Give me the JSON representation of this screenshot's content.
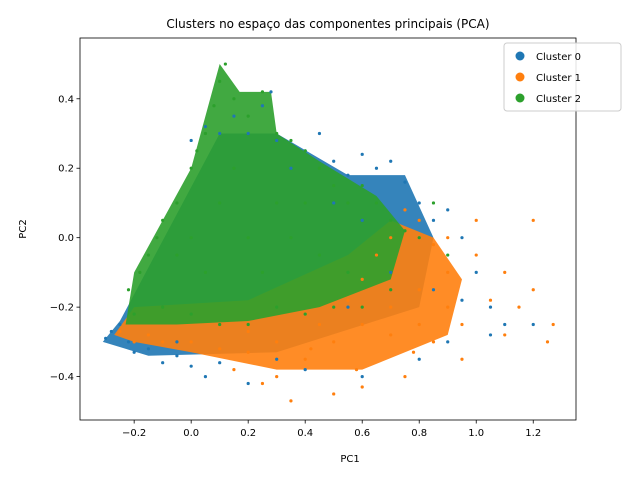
{
  "chart_data": {
    "type": "scatter",
    "title": "Clusters no espaço das componentes principais (PCA)",
    "xlabel": "PC1",
    "ylabel": "PC2",
    "xlim": [
      -0.39,
      1.35
    ],
    "ylim": [
      -0.525,
      0.575
    ],
    "xticks": [
      -0.2,
      0.0,
      0.2,
      0.4,
      0.6,
      0.8,
      1.0,
      1.2
    ],
    "xtick_labels": [
      "−0.2",
      "0.0",
      "0.2",
      "0.4",
      "0.6",
      "0.8",
      "1.0",
      "1.2"
    ],
    "yticks": [
      -0.4,
      -0.2,
      0.0,
      0.2,
      0.4
    ],
    "ytick_labels": [
      "−0.4",
      "−0.2",
      "0.0",
      "0.2",
      "0.4"
    ],
    "grid": false,
    "legend_position": "top-right",
    "series": [
      {
        "name": "Cluster 0",
        "color": "#1f77b4",
        "points": [
          [
            -0.3,
            -0.29
          ],
          [
            -0.28,
            -0.27
          ],
          [
            -0.25,
            -0.25
          ],
          [
            -0.22,
            -0.3
          ],
          [
            -0.2,
            -0.33
          ],
          [
            -0.15,
            -0.32
          ],
          [
            -0.1,
            -0.36
          ],
          [
            -0.05,
            -0.3
          ],
          [
            0.0,
            -0.37
          ],
          [
            0.05,
            -0.4
          ],
          [
            0.0,
            0.28
          ],
          [
            0.05,
            0.32
          ],
          [
            0.1,
            0.3
          ],
          [
            0.15,
            0.35
          ],
          [
            0.2,
            0.3
          ],
          [
            0.25,
            0.38
          ],
          [
            0.28,
            0.42
          ],
          [
            0.3,
            0.28
          ],
          [
            0.35,
            0.2
          ],
          [
            0.4,
            0.25
          ],
          [
            0.45,
            0.3
          ],
          [
            0.5,
            0.22
          ],
          [
            0.55,
            0.18
          ],
          [
            0.6,
            0.24
          ],
          [
            0.65,
            0.2
          ],
          [
            0.7,
            0.22
          ],
          [
            0.75,
            0.16
          ],
          [
            0.8,
            0.1
          ],
          [
            0.85,
            0.05
          ],
          [
            0.9,
            0.08
          ],
          [
            0.95,
            0.0
          ],
          [
            1.0,
            -0.1
          ],
          [
            1.05,
            -0.2
          ],
          [
            1.1,
            -0.25
          ],
          [
            1.2,
            -0.25
          ],
          [
            0.9,
            -0.3
          ],
          [
            0.8,
            -0.35
          ],
          [
            0.6,
            -0.4
          ],
          [
            0.4,
            -0.38
          ],
          [
            0.3,
            -0.35
          ],
          [
            0.1,
            -0.36
          ],
          [
            -0.05,
            -0.34
          ],
          [
            0.5,
            0.1
          ],
          [
            0.6,
            0.05
          ],
          [
            0.7,
            -0.1
          ],
          [
            0.85,
            -0.15
          ],
          [
            0.95,
            -0.18
          ],
          [
            1.05,
            -0.28
          ],
          [
            0.2,
            -0.42
          ],
          [
            0.55,
            -0.2
          ]
        ]
      },
      {
        "name": "Cluster 1",
        "color": "#ff7f0e",
        "points": [
          [
            -0.25,
            -0.27
          ],
          [
            -0.2,
            -0.3
          ],
          [
            -0.15,
            -0.28
          ],
          [
            -0.1,
            -0.3
          ],
          [
            0.0,
            -0.3
          ],
          [
            0.1,
            -0.32
          ],
          [
            0.2,
            -0.33
          ],
          [
            0.3,
            -0.3
          ],
          [
            0.4,
            -0.35
          ],
          [
            0.5,
            -0.3
          ],
          [
            0.6,
            -0.25
          ],
          [
            0.7,
            -0.2
          ],
          [
            0.8,
            -0.15
          ],
          [
            0.9,
            -0.1
          ],
          [
            1.0,
            -0.05
          ],
          [
            1.1,
            -0.1
          ],
          [
            1.2,
            -0.15
          ],
          [
            1.27,
            -0.25
          ],
          [
            1.2,
            0.05
          ],
          [
            1.1,
            -0.28
          ],
          [
            0.95,
            -0.35
          ],
          [
            0.85,
            -0.3
          ],
          [
            0.75,
            -0.4
          ],
          [
            0.6,
            -0.43
          ],
          [
            0.5,
            -0.45
          ],
          [
            0.35,
            -0.47
          ],
          [
            0.25,
            -0.42
          ],
          [
            0.15,
            -0.38
          ],
          [
            0.7,
            0.0
          ],
          [
            0.75,
            0.08
          ],
          [
            0.8,
            0.05
          ],
          [
            0.85,
            -0.02
          ],
          [
            0.65,
            -0.05
          ],
          [
            0.6,
            -0.12
          ],
          [
            0.7,
            -0.28
          ],
          [
            0.8,
            -0.25
          ],
          [
            0.9,
            -0.2
          ],
          [
            1.05,
            -0.18
          ],
          [
            0.45,
            -0.25
          ],
          [
            0.55,
            -0.18
          ],
          [
            1.0,
            0.05
          ],
          [
            0.9,
            0.0
          ],
          [
            0.78,
            -0.33
          ],
          [
            0.58,
            -0.38
          ],
          [
            0.42,
            -0.32
          ],
          [
            0.3,
            -0.4
          ],
          [
            0.2,
            -0.27
          ],
          [
            1.15,
            -0.2
          ],
          [
            1.25,
            -0.3
          ],
          [
            0.95,
            -0.25
          ]
        ]
      },
      {
        "name": "Cluster 2",
        "color": "#2ca02c",
        "points": [
          [
            -0.22,
            -0.15
          ],
          [
            -0.18,
            -0.1
          ],
          [
            -0.15,
            -0.05
          ],
          [
            -0.12,
            0.0
          ],
          [
            -0.1,
            0.05
          ],
          [
            -0.05,
            0.1
          ],
          [
            0.0,
            0.2
          ],
          [
            0.02,
            0.25
          ],
          [
            0.05,
            0.3
          ],
          [
            0.08,
            0.38
          ],
          [
            0.1,
            0.45
          ],
          [
            0.12,
            0.5
          ],
          [
            0.15,
            0.4
          ],
          [
            0.2,
            0.35
          ],
          [
            0.25,
            0.42
          ],
          [
            0.3,
            0.3
          ],
          [
            0.35,
            0.28
          ],
          [
            0.4,
            0.25
          ],
          [
            0.45,
            0.2
          ],
          [
            0.5,
            0.15
          ],
          [
            0.55,
            0.1
          ],
          [
            0.6,
            0.15
          ],
          [
            0.65,
            0.1
          ],
          [
            0.7,
            0.05
          ],
          [
            0.75,
            0.02
          ],
          [
            0.8,
            0.0
          ],
          [
            0.9,
            -0.05
          ],
          [
            0.85,
            0.1
          ],
          [
            0.7,
            -0.15
          ],
          [
            0.6,
            -0.2
          ],
          [
            0.5,
            -0.2
          ],
          [
            0.4,
            -0.22
          ],
          [
            0.3,
            -0.2
          ],
          [
            0.2,
            -0.25
          ],
          [
            0.1,
            -0.25
          ],
          [
            0.0,
            -0.22
          ],
          [
            -0.1,
            -0.2
          ],
          [
            -0.2,
            -0.22
          ],
          [
            0.0,
            0.0
          ],
          [
            0.1,
            0.1
          ],
          [
            0.2,
            0.0
          ],
          [
            0.3,
            0.1
          ],
          [
            0.15,
            0.2
          ],
          [
            0.05,
            -0.1
          ],
          [
            0.25,
            -0.1
          ],
          [
            0.35,
            0.0
          ],
          [
            0.45,
            -0.05
          ],
          [
            0.55,
            -0.1
          ],
          [
            -0.05,
            -0.05
          ],
          [
            0.4,
            0.1
          ]
        ]
      }
    ]
  }
}
